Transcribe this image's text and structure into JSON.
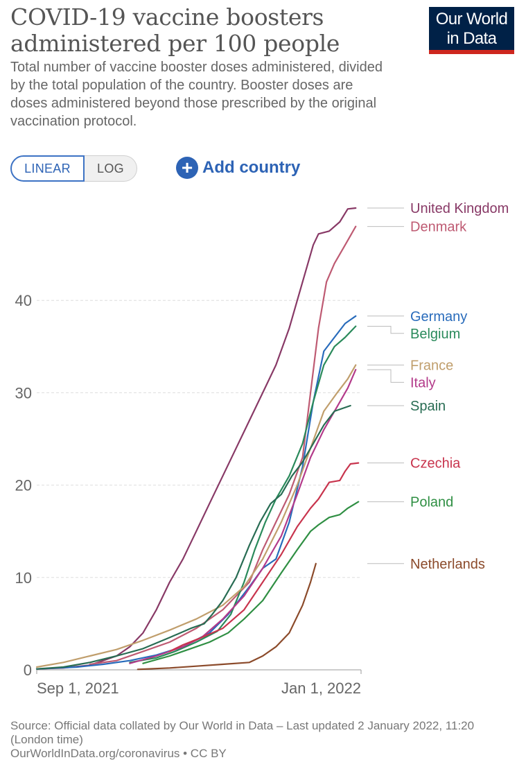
{
  "header": {
    "title": "COVID-19 vaccine boosters administered per 100 people",
    "subtitle": "Total number of vaccine booster doses administered, divided by the total population of the country. Booster doses are doses administered beyond those prescribed by the original vaccination protocol.",
    "logo_line1": "Our World",
    "logo_line2": "in Data"
  },
  "controls": {
    "linear_label": "LINEAR",
    "log_label": "LOG",
    "add_country_label": "Add country",
    "add_icon": "plus-circle-icon"
  },
  "colors": {
    "brand_navy": "#002147",
    "brand_red": "#ce261e",
    "accent_blue": "#2d63b5"
  },
  "chart_data": {
    "type": "line",
    "title": "COVID-19 vaccine boosters administered per 100 people",
    "xlabel": "",
    "ylabel": "",
    "x_domain_days": [
      0,
      122
    ],
    "ylim": [
      0,
      50
    ],
    "y_ticks": [
      0,
      10,
      20,
      30,
      40
    ],
    "x_ticks": [
      {
        "day": 0,
        "label": "Sep 1, 2021"
      },
      {
        "day": 122,
        "label": "Jan 1, 2022"
      }
    ],
    "grid": true,
    "series": [
      {
        "name": "United Kingdom",
        "color": "#883966",
        "points": [
          [
            0,
            0.1
          ],
          [
            10,
            0.2
          ],
          [
            20,
            0.5
          ],
          [
            30,
            1.5
          ],
          [
            35,
            2.5
          ],
          [
            40,
            4
          ],
          [
            45,
            6.5
          ],
          [
            50,
            9.5
          ],
          [
            55,
            12
          ],
          [
            60,
            15
          ],
          [
            65,
            18
          ],
          [
            70,
            21
          ],
          [
            75,
            24
          ],
          [
            80,
            27
          ],
          [
            85,
            30
          ],
          [
            90,
            33
          ],
          [
            95,
            37
          ],
          [
            100,
            42
          ],
          [
            104,
            46
          ],
          [
            106,
            47.2
          ],
          [
            110,
            47.5
          ],
          [
            114,
            48.5
          ],
          [
            117,
            49.9
          ],
          [
            120,
            50
          ]
        ]
      },
      {
        "name": "Denmark",
        "color": "#be5a72",
        "points": [
          [
            20,
            0.6
          ],
          [
            30,
            1
          ],
          [
            40,
            2
          ],
          [
            50,
            3
          ],
          [
            60,
            4.5
          ],
          [
            70,
            6.5
          ],
          [
            80,
            9.5
          ],
          [
            85,
            13
          ],
          [
            90,
            16
          ],
          [
            95,
            19
          ],
          [
            100,
            23
          ],
          [
            103,
            30
          ],
          [
            106,
            37
          ],
          [
            109,
            42
          ],
          [
            112,
            44
          ],
          [
            116,
            46
          ],
          [
            120,
            48
          ]
        ]
      },
      {
        "name": "Germany",
        "color": "#286bbb",
        "points": [
          [
            0,
            0.1
          ],
          [
            15,
            0.3
          ],
          [
            25,
            0.6
          ],
          [
            35,
            1
          ],
          [
            45,
            1.6
          ],
          [
            55,
            2.5
          ],
          [
            65,
            4
          ],
          [
            72,
            6
          ],
          [
            80,
            9
          ],
          [
            85,
            11
          ],
          [
            90,
            12
          ],
          [
            95,
            16
          ],
          [
            100,
            22
          ],
          [
            104,
            29
          ],
          [
            108,
            34.5
          ],
          [
            112,
            36
          ],
          [
            116,
            37.5
          ],
          [
            120,
            38.3
          ]
        ]
      },
      {
        "name": "Belgium",
        "color": "#2a8a5b",
        "points": [
          [
            35,
            0.8
          ],
          [
            45,
            1.3
          ],
          [
            52,
            2
          ],
          [
            60,
            3
          ],
          [
            68,
            4.2
          ],
          [
            73,
            6
          ],
          [
            78,
            9.5
          ],
          [
            82,
            13
          ],
          [
            86,
            16
          ],
          [
            90,
            18.5
          ],
          [
            95,
            21
          ],
          [
            100,
            24.5
          ],
          [
            104,
            29
          ],
          [
            108,
            33
          ],
          [
            112,
            35
          ],
          [
            116,
            36
          ],
          [
            120,
            37.2
          ]
        ]
      },
      {
        "name": "France",
        "color": "#c09e6c",
        "points": [
          [
            0,
            0.3
          ],
          [
            10,
            0.8
          ],
          [
            20,
            1.5
          ],
          [
            30,
            2.2
          ],
          [
            40,
            3.2
          ],
          [
            50,
            4.3
          ],
          [
            60,
            5.5
          ],
          [
            70,
            7
          ],
          [
            78,
            9
          ],
          [
            85,
            12
          ],
          [
            92,
            16
          ],
          [
            98,
            20
          ],
          [
            103,
            24
          ],
          [
            108,
            28
          ],
          [
            113,
            30
          ],
          [
            117,
            31.5
          ],
          [
            120,
            33
          ]
        ]
      },
      {
        "name": "Italy",
        "color": "#b33a8a",
        "points": [
          [
            35,
            0.7
          ],
          [
            45,
            1.5
          ],
          [
            55,
            2.5
          ],
          [
            62,
            3.5
          ],
          [
            70,
            5.5
          ],
          [
            78,
            8
          ],
          [
            85,
            11
          ],
          [
            92,
            14.5
          ],
          [
            98,
            19
          ],
          [
            103,
            23
          ],
          [
            108,
            26
          ],
          [
            113,
            28.5
          ],
          [
            117,
            30.5
          ],
          [
            120,
            32.5
          ]
        ]
      },
      {
        "name": "Spain",
        "color": "#286c53",
        "points": [
          [
            0,
            0.1
          ],
          [
            10,
            0.3
          ],
          [
            20,
            0.8
          ],
          [
            30,
            1.5
          ],
          [
            40,
            2.3
          ],
          [
            50,
            3.5
          ],
          [
            58,
            4.5
          ],
          [
            63,
            5
          ],
          [
            66,
            6
          ],
          [
            70,
            7.5
          ],
          [
            75,
            10
          ],
          [
            80,
            13.5
          ],
          [
            84,
            16
          ],
          [
            88,
            18
          ],
          [
            92,
            19
          ],
          [
            96,
            21
          ],
          [
            100,
            22.5
          ],
          [
            104,
            24.5
          ],
          [
            108,
            26.5
          ],
          [
            112,
            28
          ],
          [
            118,
            28.6
          ]
        ]
      },
      {
        "name": "Czechia",
        "color": "#c8344d",
        "points": [
          [
            50,
            2
          ],
          [
            55,
            2.7
          ],
          [
            62,
            3.5
          ],
          [
            70,
            4.5
          ],
          [
            78,
            6.5
          ],
          [
            85,
            9.5
          ],
          [
            92,
            12.5
          ],
          [
            98,
            15.5
          ],
          [
            103,
            17.5
          ],
          [
            106,
            18.5
          ],
          [
            110,
            20.3
          ],
          [
            114,
            20.5
          ],
          [
            116,
            21.5
          ],
          [
            118,
            22.3
          ],
          [
            121,
            22.4
          ]
        ]
      },
      {
        "name": "Poland",
        "color": "#2f8f43",
        "points": [
          [
            40,
            0.7
          ],
          [
            50,
            1.5
          ],
          [
            60,
            2.5
          ],
          [
            65,
            3
          ],
          [
            72,
            4
          ],
          [
            78,
            5.5
          ],
          [
            85,
            7.5
          ],
          [
            92,
            10.5
          ],
          [
            98,
            13
          ],
          [
            103,
            15
          ],
          [
            106,
            15.7
          ],
          [
            110,
            16.5
          ],
          [
            114,
            16.8
          ],
          [
            117,
            17.5
          ],
          [
            121,
            18.2
          ]
        ]
      },
      {
        "name": "Netherlands",
        "color": "#8b4a2a",
        "points": [
          [
            38,
            0.05
          ],
          [
            50,
            0.2
          ],
          [
            60,
            0.4
          ],
          [
            70,
            0.6
          ],
          [
            80,
            0.8
          ],
          [
            85,
            1.5
          ],
          [
            90,
            2.5
          ],
          [
            95,
            4
          ],
          [
            100,
            7
          ],
          [
            103,
            9.5
          ],
          [
            105,
            11.5
          ]
        ]
      }
    ]
  },
  "source": {
    "text": "Source: Official data collated by Our World in Data – Last updated 2 January 2022, 11:20 (London time)",
    "link": "OurWorldInData.org/coronavirus",
    "license": " • CC BY"
  }
}
